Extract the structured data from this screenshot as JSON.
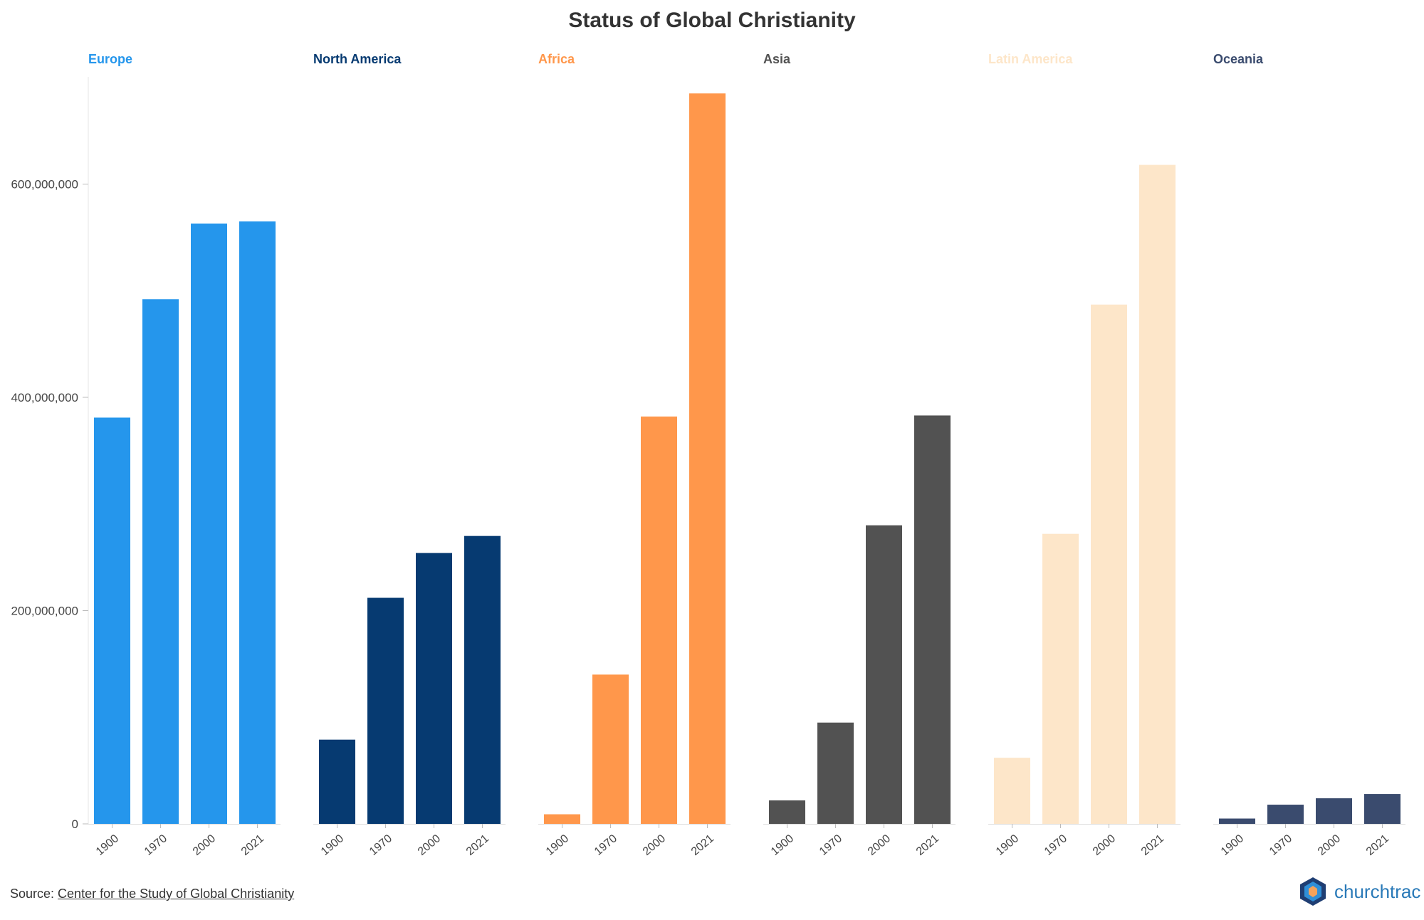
{
  "chart_data": {
    "type": "bar",
    "title": "Status of Global Christianity",
    "xlabel": "",
    "ylabel": "",
    "ylim": [
      0,
      700000000
    ],
    "yticks": [
      0,
      200000000,
      400000000,
      600000000
    ],
    "ytick_labels": [
      "0",
      "200,000,000",
      "400,000,000",
      "600,000,000"
    ],
    "categories": [
      "1900",
      "1970",
      "2000",
      "2021"
    ],
    "grid": false,
    "legend": "none",
    "panels": [
      {
        "name": "Europe",
        "color": "#2596EC",
        "values": [
          381000000,
          492000000,
          563000000,
          565000000
        ]
      },
      {
        "name": "North America",
        "color": "#063A71",
        "values": [
          79000000,
          212000000,
          254000000,
          270000000
        ]
      },
      {
        "name": "Africa",
        "color": "#FF974B",
        "values": [
          9000000,
          140000000,
          382000000,
          685000000
        ]
      },
      {
        "name": "Asia",
        "color": "#525252",
        "values": [
          22000000,
          95000000,
          280000000,
          383000000
        ]
      },
      {
        "name": "Latin America",
        "color": "#FDE6C9",
        "values": [
          62000000,
          272000000,
          487000000,
          618000000
        ]
      },
      {
        "name": "Oceania",
        "color": "#3A4B6E",
        "values": [
          5000000,
          18000000,
          24000000,
          28000000
        ]
      }
    ]
  },
  "source": {
    "prefix": "Source: ",
    "link_text": "Center for the Study of Global Christianity"
  },
  "logo": {
    "text": "churchtrac",
    "icon": "churchtrac-logo-icon"
  }
}
